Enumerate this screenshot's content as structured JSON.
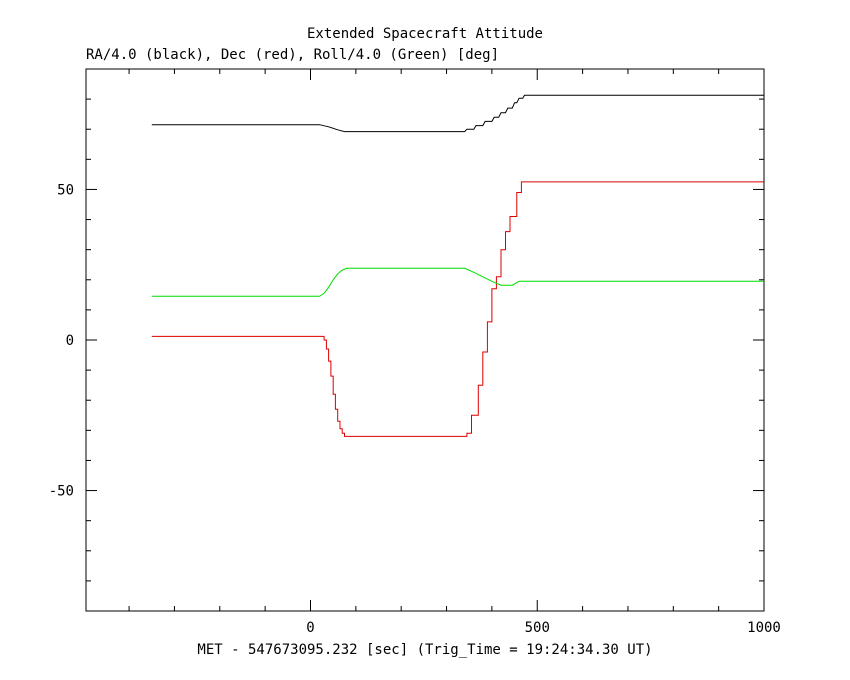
{
  "chart_data": {
    "type": "line",
    "title": "Extended Spacecraft Attitude",
    "subtitle": "RA/4.0 (black), Dec (red), Roll/4.0 (Green) [deg]",
    "xlabel": "MET - 547673095.232 [sec] (Trig_Time = 19:24:34.30 UT)",
    "ylabel": "",
    "xlim": [
      -495,
      1000
    ],
    "ylim": [
      -90,
      90
    ],
    "x_ticks": [
      0,
      500,
      1000
    ],
    "y_ticks": [
      -50,
      0,
      50
    ],
    "x_minor_step": 100,
    "y_minor_step": 10,
    "grid": false,
    "series": [
      {
        "color": "#000000",
        "step": false,
        "points": [
          [
            -350,
            71.5
          ],
          [
            20,
            71.5
          ],
          [
            40,
            70.8
          ],
          [
            60,
            69.8
          ],
          [
            75,
            69.2
          ],
          [
            340,
            69.2
          ],
          [
            345,
            70.0
          ],
          [
            360,
            70.0
          ],
          [
            365,
            71.2
          ],
          [
            380,
            71.2
          ],
          [
            385,
            72.6
          ],
          [
            400,
            72.6
          ],
          [
            405,
            74.0
          ],
          [
            415,
            74.0
          ],
          [
            420,
            75.5
          ],
          [
            430,
            75.5
          ],
          [
            435,
            77.0
          ],
          [
            445,
            77.0
          ],
          [
            450,
            78.8
          ],
          [
            455,
            78.8
          ],
          [
            460,
            80.3
          ],
          [
            468,
            80.3
          ],
          [
            472,
            81.3
          ],
          [
            1000,
            81.3
          ]
        ]
      },
      {
        "color": "#dd0000",
        "step": true,
        "points": [
          [
            -350,
            1.2
          ],
          [
            20,
            1.2
          ],
          [
            30,
            0.0
          ],
          [
            35,
            -3.0
          ],
          [
            40,
            -7.0
          ],
          [
            45,
            -12.0
          ],
          [
            50,
            -18.0
          ],
          [
            55,
            -23.0
          ],
          [
            60,
            -27.0
          ],
          [
            65,
            -29.5
          ],
          [
            70,
            -31.0
          ],
          [
            75,
            -32.0
          ],
          [
            340,
            -32.0
          ],
          [
            345,
            -31.0
          ],
          [
            355,
            -25.0
          ],
          [
            370,
            -15.0
          ],
          [
            380,
            -4.0
          ],
          [
            390,
            6.0
          ],
          [
            400,
            17.0
          ],
          [
            410,
            21.0
          ],
          [
            420,
            30.0
          ],
          [
            430,
            36.0
          ],
          [
            440,
            41.0
          ],
          [
            455,
            49.0
          ],
          [
            465,
            52.5
          ],
          [
            1000,
            52.5
          ]
        ]
      },
      {
        "color": "#00dd00",
        "step": false,
        "points": [
          [
            -350,
            14.5
          ],
          [
            20,
            14.5
          ],
          [
            30,
            15.5
          ],
          [
            40,
            17.5
          ],
          [
            50,
            20.0
          ],
          [
            60,
            22.0
          ],
          [
            70,
            23.2
          ],
          [
            80,
            23.8
          ],
          [
            340,
            23.8
          ],
          [
            360,
            22.5
          ],
          [
            380,
            21.0
          ],
          [
            400,
            19.5
          ],
          [
            420,
            18.2
          ],
          [
            445,
            18.2
          ],
          [
            460,
            19.5
          ],
          [
            1000,
            19.5
          ]
        ]
      }
    ]
  }
}
